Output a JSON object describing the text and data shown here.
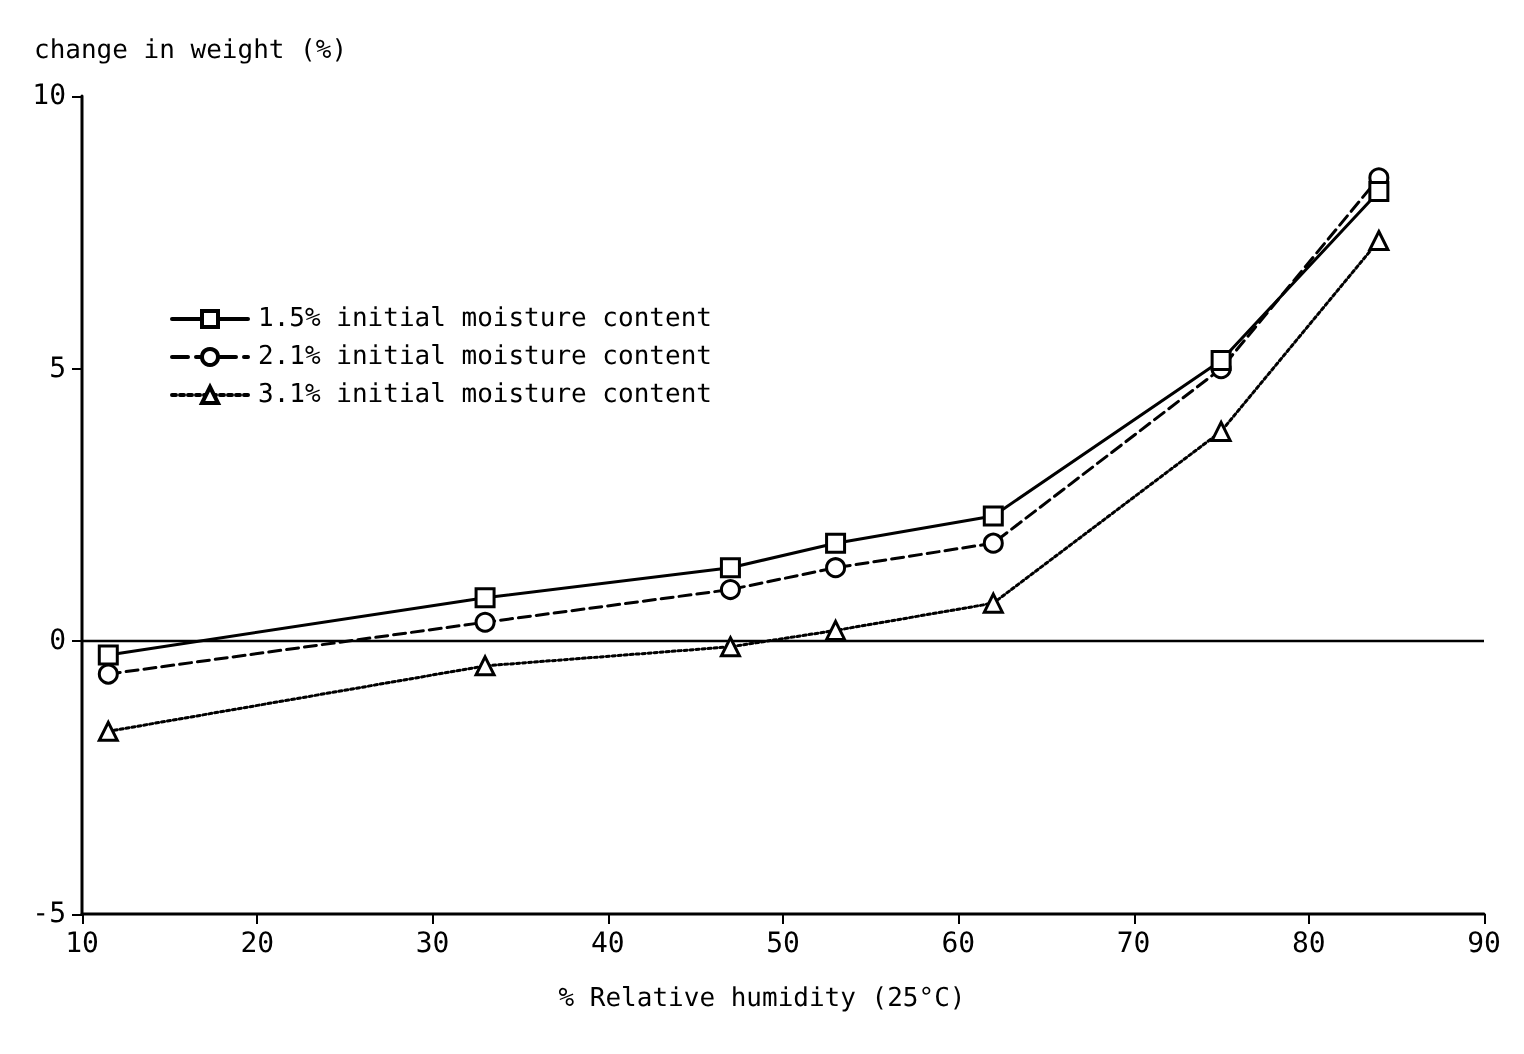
{
  "chart_data": {
    "type": "line",
    "ylabel": "change in weight (%)",
    "xlabel": "% Relative humidity (25°C)",
    "x": [
      11.5,
      33,
      47,
      53,
      62,
      75,
      84
    ],
    "series": [
      {
        "name": "1.5% initial moisture content",
        "color": "#000000",
        "marker": "square",
        "line_style": "solid",
        "values": [
          -0.25,
          0.8,
          1.35,
          1.8,
          2.3,
          5.15,
          8.25
        ]
      },
      {
        "name": "2.1% initial moisture content",
        "color": "#000000",
        "marker": "circle",
        "line_style": "dashed",
        "values": [
          -0.6,
          0.35,
          0.95,
          1.35,
          1.8,
          5.0,
          8.5
        ]
      },
      {
        "name": "3.1% initial moisture content",
        "color": "#000000",
        "marker": "triangle",
        "line_style": "dotted",
        "values": [
          -1.65,
          -0.45,
          -0.1,
          0.2,
          0.7,
          3.85,
          7.35
        ]
      }
    ],
    "xlim": [
      10,
      90
    ],
    "xticks": [
      10,
      20,
      30,
      40,
      50,
      60,
      70,
      80,
      90
    ],
    "ylim": [
      -5,
      10
    ],
    "yticks": [
      -5,
      0,
      5,
      10
    ],
    "ref_lines": [
      {
        "axis": "y",
        "value": 0,
        "color": "#000000",
        "line_style": "solid"
      }
    ],
    "grid": false,
    "legend": "top left"
  }
}
